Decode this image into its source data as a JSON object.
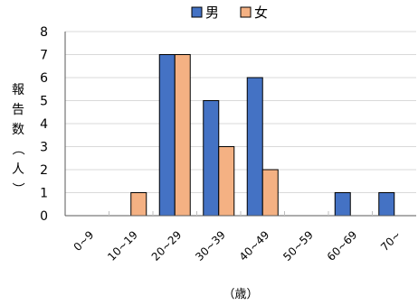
{
  "chart_data": {
    "type": "bar",
    "categories": [
      "0~9",
      "10~19",
      "20~29",
      "30~39",
      "40~49",
      "50~59",
      "60~69",
      "70~"
    ],
    "series": [
      {
        "name": "男",
        "color": "#4472C4",
        "values": [
          0,
          0,
          7,
          5,
          6,
          0,
          1,
          1
        ]
      },
      {
        "name": "女",
        "color": "#F4B183",
        "values": [
          0,
          1,
          7,
          3,
          2,
          0,
          0,
          0
        ]
      }
    ],
    "title": "",
    "xlabel": "（歳）",
    "ylabel": "報告数（人）",
    "ylim": [
      0,
      8
    ],
    "yticks": [
      0,
      1,
      2,
      3,
      4,
      5,
      6,
      7,
      8
    ],
    "grid": true,
    "legend_position": "top-center"
  }
}
